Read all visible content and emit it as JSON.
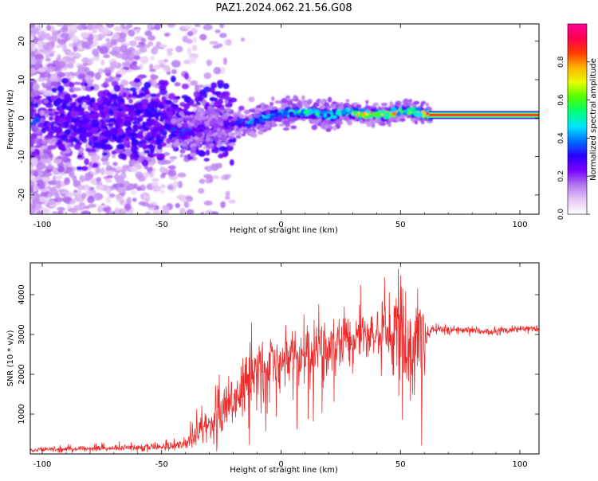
{
  "title": "PAZ1.2024.062.21.56.G08",
  "chart_data": [
    {
      "type": "heatmap",
      "xlabel": "Height of straight line (km)",
      "ylabel": "Frequency (Hz)",
      "xlim": [
        -105,
        108
      ],
      "ylim": [
        -25,
        24.5
      ],
      "x_ticks": [
        -100,
        -50,
        0,
        50,
        100
      ],
      "y_ticks": [
        -20,
        -10,
        0,
        10,
        20
      ],
      "colorbar": {
        "label": "Normalized spectral amplitude",
        "range": [
          0,
          1
        ],
        "ticks": [
          0.0,
          0.2,
          0.4,
          0.6,
          0.8
        ],
        "colormap": [
          "#ffffff",
          "#e6c8f5",
          "#b478f0",
          "#7800ff",
          "#2a00ff",
          "#0070ff",
          "#00e6ff",
          "#00ff7a",
          "#50ff00",
          "#e6ff00",
          "#ffb400",
          "#ff3c00",
          "#ff0050",
          "#ff0096"
        ]
      },
      "ridge": [
        {
          "x": -43,
          "freq": -4.0,
          "amp": 0.4
        },
        {
          "x": -35,
          "freq": -3.0,
          "amp": 0.3
        },
        {
          "x": -25,
          "freq": -1.5,
          "amp": 0.25
        },
        {
          "x": -13,
          "freq": -1.0,
          "amp": 0.45
        },
        {
          "x": -5,
          "freq": 0.5,
          "amp": 0.5
        },
        {
          "x": 5,
          "freq": 1.5,
          "amp": 0.55
        },
        {
          "x": 13,
          "freq": 1.5,
          "amp": 0.55
        },
        {
          "x": 20,
          "freq": 0.5,
          "amp": 0.55
        },
        {
          "x": 26,
          "freq": 1.8,
          "amp": 0.6
        },
        {
          "x": 32,
          "freq": 1.0,
          "amp": 0.9
        },
        {
          "x": 45,
          "freq": 1.0,
          "amp": 0.9
        },
        {
          "x": 52,
          "freq": 2.0,
          "amp": 0.7
        },
        {
          "x": 62,
          "freq": 0.8,
          "amp": 0.95
        },
        {
          "x": 108,
          "freq": 0.8,
          "amp": 0.95
        }
      ]
    },
    {
      "type": "line",
      "xlabel": "Height of straight line (km)",
      "ylabel": "SNR (10 * v/v)",
      "xlim": [
        -105,
        108
      ],
      "ylim": [
        0,
        4800
      ],
      "x_ticks": [
        -100,
        -50,
        0,
        50,
        100
      ],
      "y_ticks": [
        1000,
        2000,
        3000,
        4000
      ],
      "color": "#ee2a2a",
      "series": [
        {
          "x": [
            -105,
            -90,
            -75,
            -60,
            -45,
            -40,
            -35,
            -30,
            -25,
            -20,
            -15,
            -10,
            -5,
            0,
            5,
            10,
            15,
            20,
            25,
            30,
            35,
            40,
            45,
            50,
            55,
            60,
            62,
            63,
            70,
            80,
            88,
            90,
            95,
            100,
            108
          ],
          "mean": [
            110,
            120,
            140,
            170,
            180,
            250,
            600,
            800,
            1000,
            1200,
            1800,
            2100,
            2300,
            2200,
            2400,
            2500,
            2600,
            2700,
            2800,
            2900,
            2950,
            3000,
            3000,
            3000,
            2900,
            2800,
            3050,
            3150,
            3100,
            3100,
            3050,
            3100,
            3100,
            3150,
            3150
          ],
          "spread": [
            60,
            60,
            70,
            80,
            90,
            150,
            300,
            450,
            600,
            700,
            750,
            800,
            800,
            850,
            850,
            800,
            800,
            700,
            700,
            600,
            600,
            550,
            700,
            1100,
            1300,
            1300,
            120,
            100,
            100,
            90,
            90,
            110,
            90,
            90,
            90
          ]
        }
      ]
    }
  ]
}
